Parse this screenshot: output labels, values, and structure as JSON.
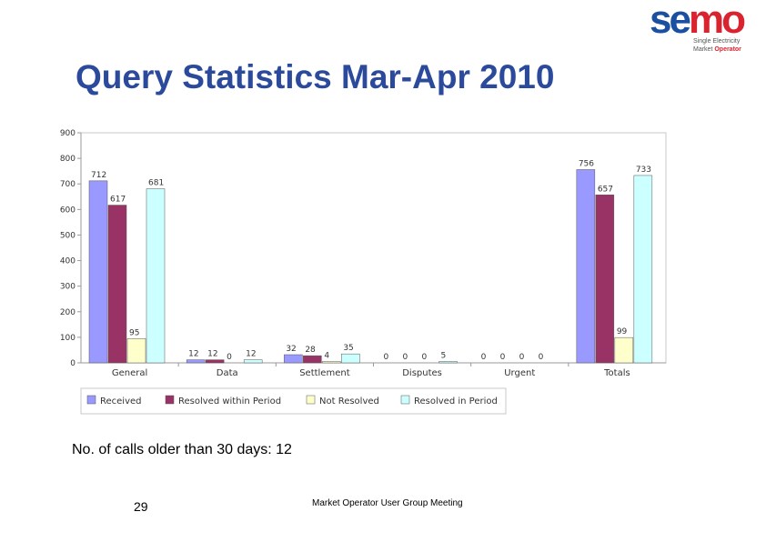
{
  "logo": {
    "word": "semo",
    "tagline_1": "Single Electricity",
    "tagline_2_a": "Market ",
    "tagline_2_b": "Operator"
  },
  "title": "Query Statistics Mar-Apr 2010",
  "note": "No. of calls older than 30 days: 12",
  "page_number": "29",
  "footer": "Market Operator User Group Meeting",
  "chart_data": {
    "type": "bar",
    "categories": [
      "General",
      "Data",
      "Settlement",
      "Disputes",
      "Urgent",
      "Totals"
    ],
    "series": [
      {
        "name": "Received",
        "color": "#9999ff",
        "values": [
          712,
          12,
          32,
          0,
          0,
          756
        ]
      },
      {
        "name": "Resolved within Period",
        "color": "#993366",
        "values": [
          617,
          12,
          28,
          0,
          0,
          657
        ]
      },
      {
        "name": "Not Resolved",
        "color": "#ffffcc",
        "values": [
          95,
          0,
          4,
          0,
          0,
          99
        ]
      },
      {
        "name": "Resolved in Period",
        "color": "#ccffff",
        "values": [
          681,
          12,
          35,
          5,
          0,
          733
        ]
      }
    ],
    "ylim": [
      0,
      900
    ],
    "yticks": [
      0,
      100,
      200,
      300,
      400,
      500,
      600,
      700,
      800,
      900
    ],
    "legend_position": "bottom",
    "grid": false
  }
}
